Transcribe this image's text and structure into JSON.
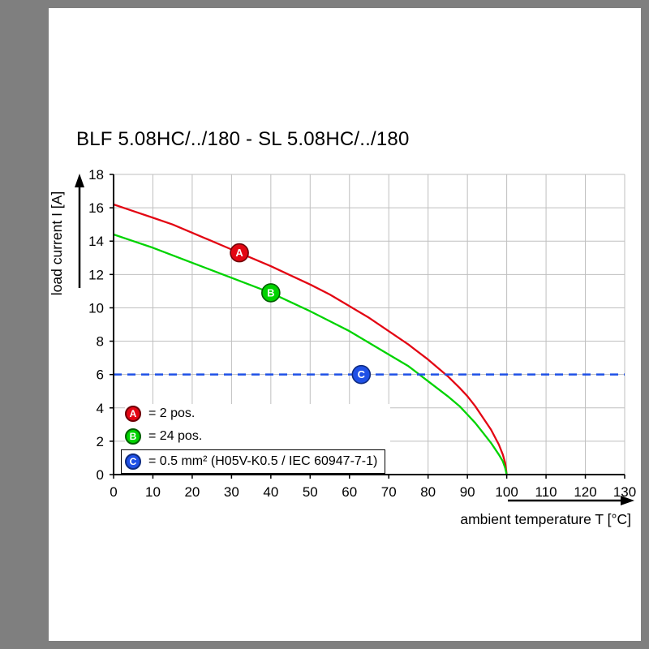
{
  "frame": {
    "background": "#7f7f7f",
    "panel_background": "#ffffff"
  },
  "title": "BLF 5.08HC/../180 - SL 5.08HC/../180",
  "chart_data": {
    "type": "line",
    "title": "BLF 5.08HC/../180 - SL 5.08HC/../180",
    "xlabel": "ambient temperature T [°C]",
    "ylabel": "load current I [A]",
    "xlim": [
      0,
      130
    ],
    "ylim": [
      0,
      18
    ],
    "xticks": [
      0,
      10,
      20,
      30,
      40,
      50,
      60,
      70,
      80,
      90,
      100,
      110,
      120,
      130
    ],
    "yticks": [
      0,
      2,
      4,
      6,
      8,
      10,
      12,
      14,
      16,
      18
    ],
    "grid": true,
    "grid_color": "#bfbfbf",
    "axis_color": "#000000",
    "legend_position": "bottom-left",
    "series": [
      {
        "id": "A",
        "legend_label": "= 2 pos.",
        "color": "#e30613",
        "edge": "#6e0006",
        "marker": {
          "x": 32,
          "y": 13.3
        },
        "points": [
          [
            0,
            16.2
          ],
          [
            5,
            15.8
          ],
          [
            10,
            15.4
          ],
          [
            15,
            15.0
          ],
          [
            20,
            14.5
          ],
          [
            25,
            14.0
          ],
          [
            30,
            13.5
          ],
          [
            35,
            13.0
          ],
          [
            40,
            12.5
          ],
          [
            45,
            11.95
          ],
          [
            50,
            11.4
          ],
          [
            55,
            10.8
          ],
          [
            60,
            10.1
          ],
          [
            65,
            9.4
          ],
          [
            70,
            8.6
          ],
          [
            75,
            7.8
          ],
          [
            80,
            6.9
          ],
          [
            85,
            5.9
          ],
          [
            88,
            5.2
          ],
          [
            90,
            4.7
          ],
          [
            92,
            4.1
          ],
          [
            94,
            3.4
          ],
          [
            96,
            2.7
          ],
          [
            98,
            1.8
          ],
          [
            99,
            1.2
          ],
          [
            99.6,
            0.7
          ],
          [
            100,
            0
          ]
        ]
      },
      {
        "id": "B",
        "legend_label": "= 24 pos.",
        "color": "#00d300",
        "edge": "#005e00",
        "marker": {
          "x": 40,
          "y": 10.9
        },
        "points": [
          [
            0,
            14.4
          ],
          [
            5,
            14.0
          ],
          [
            10,
            13.6
          ],
          [
            15,
            13.15
          ],
          [
            20,
            12.7
          ],
          [
            25,
            12.25
          ],
          [
            30,
            11.8
          ],
          [
            35,
            11.35
          ],
          [
            40,
            10.9
          ],
          [
            45,
            10.35
          ],
          [
            50,
            9.8
          ],
          [
            55,
            9.2
          ],
          [
            60,
            8.6
          ],
          [
            65,
            7.9
          ],
          [
            70,
            7.2
          ],
          [
            75,
            6.5
          ],
          [
            80,
            5.6
          ],
          [
            85,
            4.7
          ],
          [
            88,
            4.1
          ],
          [
            90,
            3.6
          ],
          [
            92,
            3.1
          ],
          [
            94,
            2.5
          ],
          [
            96,
            1.9
          ],
          [
            98,
            1.2
          ],
          [
            99,
            0.8
          ],
          [
            99.6,
            0.4
          ],
          [
            100,
            0
          ]
        ]
      },
      {
        "id": "C",
        "legend_label": "= 0.5 mm² (H05V-K0.5 / IEC 60947-7-1)",
        "color": "#1f50e6",
        "edge": "#0d2a80",
        "dashed": true,
        "value": 6,
        "marker": {
          "x": 63,
          "y": 6
        }
      }
    ]
  }
}
